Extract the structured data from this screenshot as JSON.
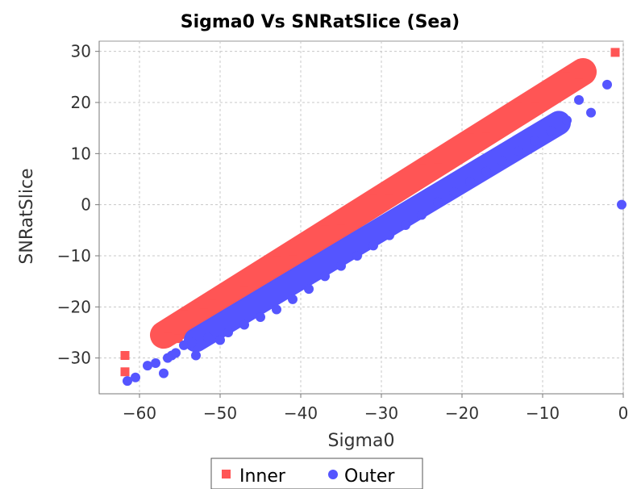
{
  "chart_data": {
    "type": "scatter",
    "title": "Sigma0 Vs SNRatSlice (Sea)",
    "xlabel": "Sigma0",
    "ylabel": "SNRatSlice",
    "xlim": [
      -65,
      0
    ],
    "ylim": [
      -37,
      32
    ],
    "x_ticks": [
      -60,
      -50,
      -40,
      -30,
      -20,
      -10,
      0
    ],
    "y_ticks": [
      30,
      20,
      10,
      0,
      -10,
      -20,
      -30
    ],
    "grid": true,
    "legend_placement": "bottom",
    "series": [
      {
        "name": "Inner",
        "marker": "square",
        "color": "#ff5555",
        "x": [
          -61.8,
          -61.8,
          -56.5,
          -55.2,
          -54.5,
          -54.0,
          -53.0,
          -52.0,
          -51.0,
          -50.0,
          -48.5,
          -47.0,
          -45.0,
          -43.0,
          -41.0,
          -39.0,
          -37.0,
          -35.0,
          -33.0,
          -31.0,
          -29.0,
          -27.0,
          -25.0,
          -23.0,
          -21.0,
          -19.0,
          -17.0,
          -15.0,
          -13.0,
          -11.0,
          -9.0,
          -7.0,
          -6.0,
          -5.5,
          -4.5,
          -1.0
        ],
        "y": [
          -29.5,
          -32.7,
          -26.0,
          -26.2,
          -21.5,
          -22.5,
          -20.0,
          -19.5,
          -17.8,
          -17.0,
          -16.0,
          -15.0,
          -13.0,
          -11.0,
          -9.0,
          -7.0,
          -5.0,
          -3.0,
          -1.0,
          1.0,
          3.0,
          5.0,
          7.0,
          9.0,
          11.0,
          13.0,
          15.0,
          17.0,
          19.0,
          21.0,
          23.0,
          25.0,
          26.0,
          25.5,
          26.5,
          29.8
        ],
        "band": [
          [
            -57,
            -25.5
          ],
          [
            -5,
            26
          ]
        ]
      },
      {
        "name": "Outer",
        "marker": "circle",
        "color": "#5555ff",
        "x": [
          -61.5,
          -60.5,
          -59.0,
          -58.0,
          -57.0,
          -56.0,
          -56.5,
          -55.5,
          -54.5,
          -53.5,
          -53.0,
          -51.5,
          -50.0,
          -49.0,
          -47.0,
          -45.0,
          -43.0,
          -41.0,
          -39.0,
          -37.0,
          -35.0,
          -33.0,
          -31.0,
          -29.0,
          -27.0,
          -25.0,
          -23.0,
          -21.0,
          -19.0,
          -17.0,
          -15.0,
          -13.0,
          -11.0,
          -9.0,
          -7.0,
          -5.5,
          -4.0,
          -2.0,
          -0.2
        ],
        "y": [
          -34.5,
          -33.8,
          -31.5,
          -31.0,
          -33.0,
          -29.5,
          -30.0,
          -29.0,
          -27.5,
          -27.0,
          -29.5,
          -26.0,
          -26.5,
          -25.0,
          -23.5,
          -22.0,
          -20.5,
          -18.5,
          -16.5,
          -14.0,
          -12.0,
          -10.0,
          -8.0,
          -6.0,
          -4.0,
          -2.0,
          0.5,
          2.5,
          4.5,
          6.5,
          8.5,
          10.5,
          12.5,
          14.5,
          16.5,
          20.5,
          18.0,
          23.5,
          0.0
        ],
        "band": [
          [
            -53,
            -26.5
          ],
          [
            -8,
            16
          ]
        ]
      }
    ]
  }
}
